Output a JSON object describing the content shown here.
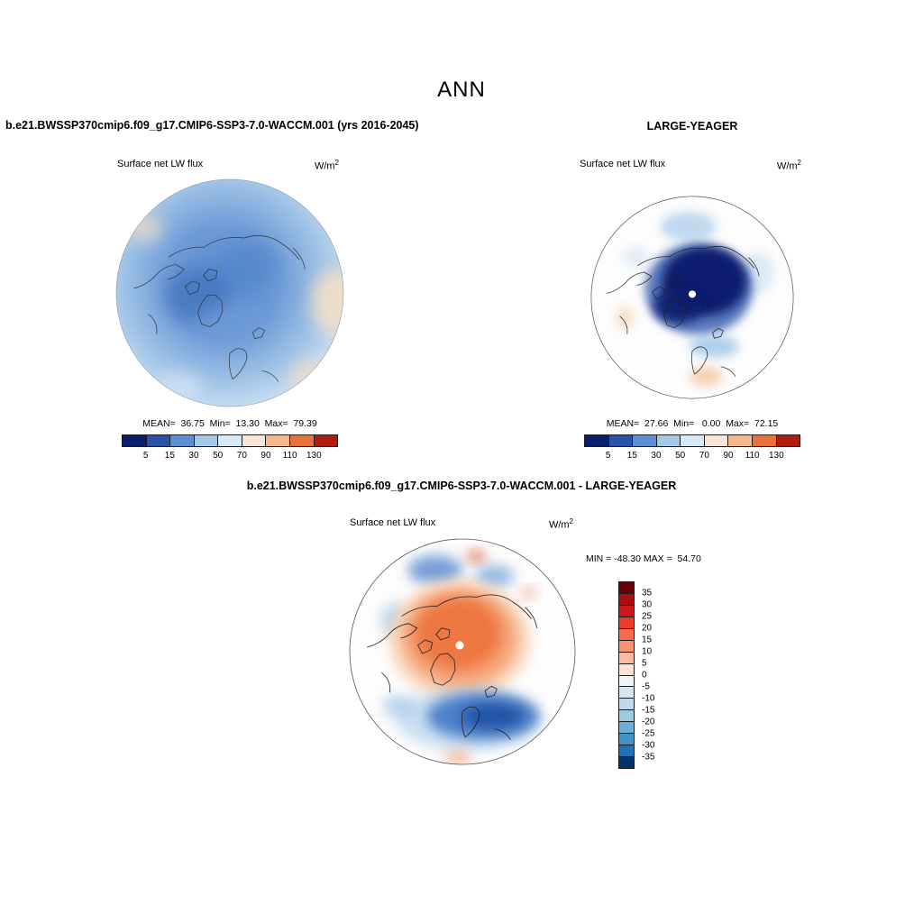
{
  "page_title": "ANN",
  "panels": {
    "model": {
      "header": "b.e21.BWSSP370cmip6.f09_g17.CMIP6-SSP3-7.0-WACCM.001 (yrs 2016-2045)",
      "field": "Surface net LW flux",
      "units_base": "W/m",
      "units_exp": "2",
      "stats": "MEAN=  36.75  Min=  13.30  Max=  79.39"
    },
    "obs": {
      "header": "LARGE-YEAGER",
      "field": "Surface net LW flux",
      "units_base": "W/m",
      "units_exp": "2",
      "stats": "MEAN=  27.66  Min=   0.00  Max=  72.15"
    },
    "diff": {
      "header": "b.e21.BWSSP370cmip6.f09_g17.CMIP6-SSP3-7.0-WACCM.001 - LARGE-YEAGER",
      "field": "Surface net LW flux",
      "units_base": "W/m",
      "units_exp": "2",
      "stats": "MIN = -48.30 MAX =  54.70"
    }
  },
  "colorbars": {
    "flux": {
      "orientation": "horizontal",
      "colors": [
        "#0a1e6e",
        "#2a52a8",
        "#5e8fd2",
        "#a3c8e8",
        "#d9e9f5",
        "#f7e6d5",
        "#f5b98c",
        "#e8703c",
        "#b01c10"
      ],
      "ticks": [
        "5",
        "15",
        "30",
        "50",
        "70",
        "90",
        "110",
        "130"
      ]
    },
    "diff": {
      "orientation": "vertical",
      "colors": [
        "#67000d",
        "#a50f15",
        "#cb181d",
        "#ef3b2c",
        "#fb6a4a",
        "#fc9272",
        "#fcbba1",
        "#fee3d4",
        "#eef5fb",
        "#d6e6f4",
        "#c0d9ee",
        "#9ecae1",
        "#6baed6",
        "#4292c6",
        "#2171b5",
        "#08306b"
      ],
      "ticks": [
        "35",
        "30",
        "25",
        "20",
        "15",
        "10",
        "5",
        "0",
        "-5",
        "-10",
        "-15",
        "-20",
        "-25",
        "-30",
        "-35"
      ]
    }
  },
  "chart_data": [
    {
      "type": "heatmap",
      "projection": "north-polar-stereographic",
      "title": "b.e21.BWSSP370cmip6.f09_g17.CMIP6-SSP3-7.0-WACCM.001 (yrs 2016-2045)",
      "variable": "Surface net LW flux",
      "units": "W/m^2",
      "season": "ANN",
      "stats": {
        "mean": 36.75,
        "min": 13.3,
        "max": 79.39
      },
      "colorbar_levels": [
        5,
        15,
        30,
        50,
        70,
        90,
        110,
        130
      ],
      "colorbar_orientation": "horizontal",
      "palette": "blue-to-red diverging"
    },
    {
      "type": "heatmap",
      "projection": "north-polar-stereographic",
      "title": "LARGE-YEAGER",
      "variable": "Surface net LW flux",
      "units": "W/m^2",
      "season": "ANN",
      "stats": {
        "mean": 27.66,
        "min": 0.0,
        "max": 72.15
      },
      "colorbar_levels": [
        5,
        15,
        30,
        50,
        70,
        90,
        110,
        130
      ],
      "colorbar_orientation": "horizontal",
      "palette": "blue-to-red diverging"
    },
    {
      "type": "heatmap",
      "projection": "north-polar-stereographic",
      "title": "b.e21.BWSSP370cmip6.f09_g17.CMIP6-SSP3-7.0-WACCM.001 - LARGE-YEAGER",
      "variable": "Surface net LW flux",
      "units": "W/m^2",
      "season": "ANN",
      "stats": {
        "min": -48.3,
        "max": 54.7
      },
      "colorbar_levels": [
        35,
        30,
        25,
        20,
        15,
        10,
        5,
        0,
        -5,
        -10,
        -15,
        -20,
        -25,
        -30,
        -35
      ],
      "colorbar_orientation": "vertical",
      "palette": "red-to-blue diverging"
    }
  ]
}
